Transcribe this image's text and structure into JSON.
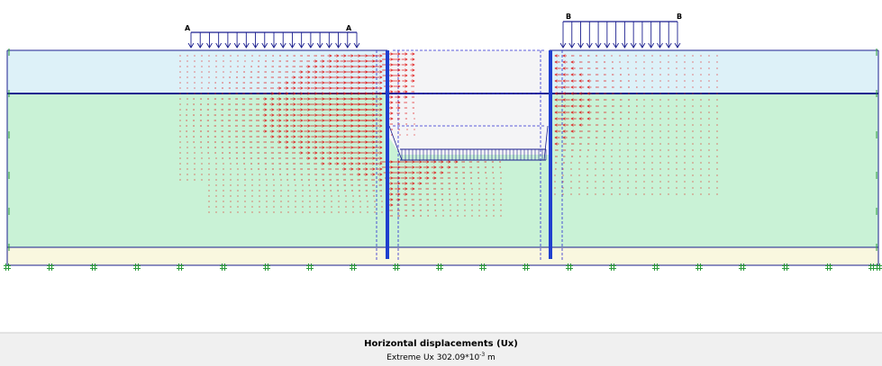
{
  "loads": {
    "a_label": "A",
    "b_label": "B"
  },
  "caption": {
    "title": "Horizontal displacements (Ux)",
    "extreme_prefix": "Extreme Ux 302.09*10",
    "extreme_exponent": "-3",
    "extreme_unit": " m"
  },
  "colors": {
    "upper_layer": "#ddf1f8",
    "middle_layer": "#c9f2d6",
    "bottom_layer": "#f9f7df",
    "wall": "#1f3fcf",
    "boundary": "#1b1f8f",
    "arrow": "#e01010",
    "fixity": "#2a9a3a"
  }
}
